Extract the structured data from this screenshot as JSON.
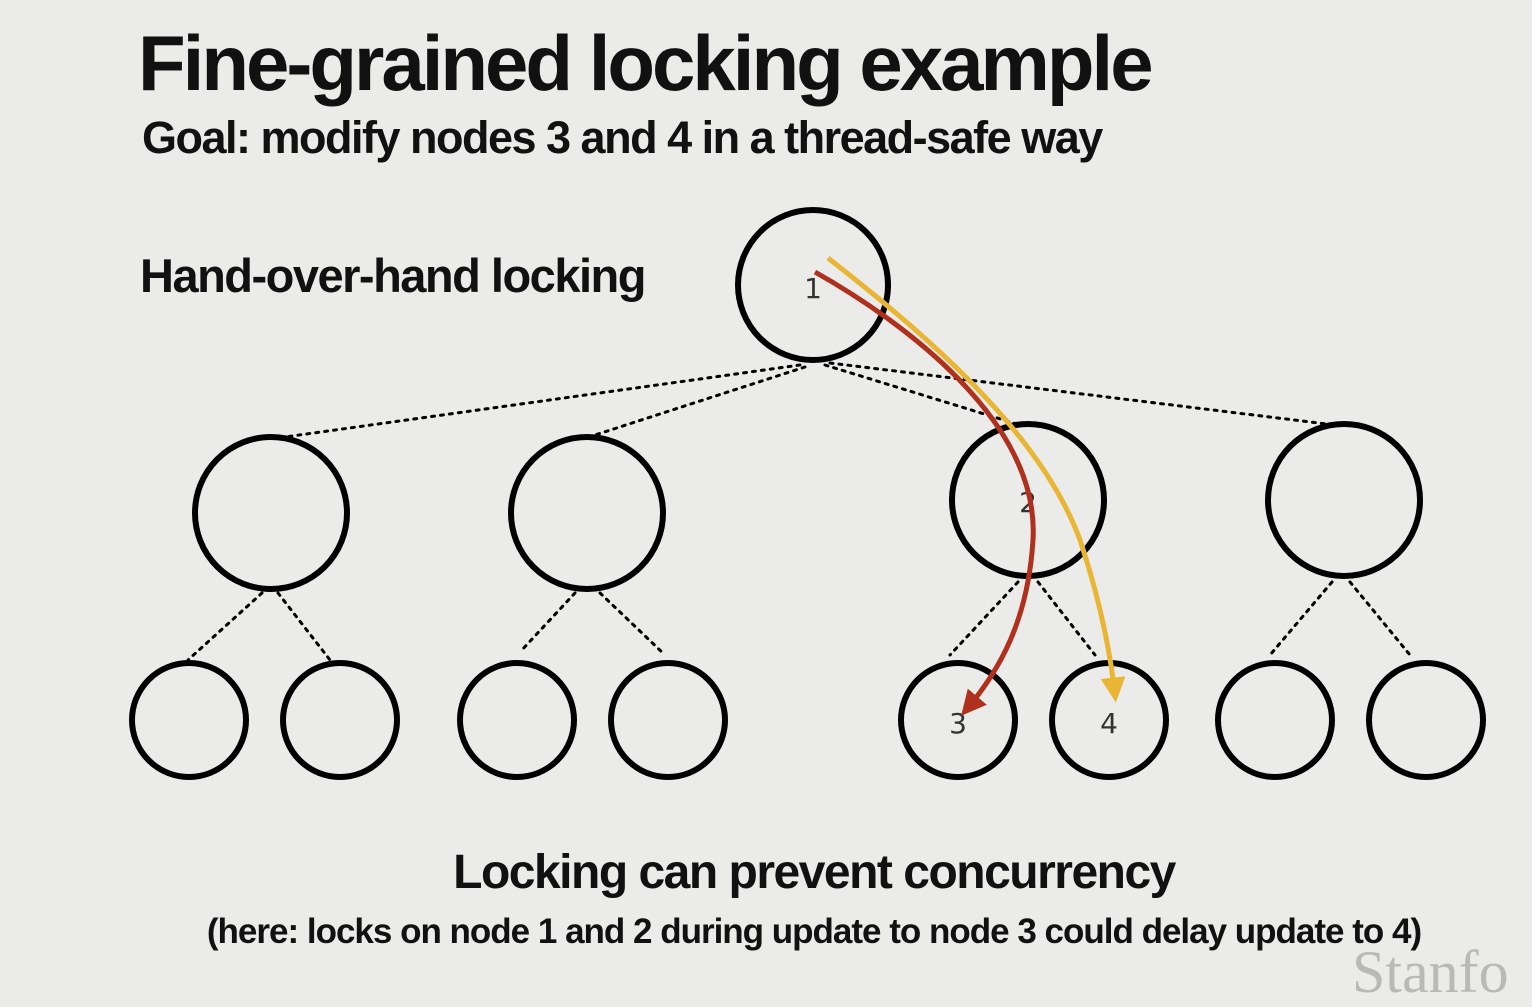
{
  "title": "Fine-grained locking example",
  "subtitle": "Goal: modify nodes 3 and 4 in a thread-safe way",
  "side_label": "Hand-over-hand locking",
  "caption": {
    "main": "Locking can prevent concurrency",
    "sub": "(here: locks on node 1 and 2 during update to node 3 could delay update to 4)"
  },
  "nodes": {
    "root": "1",
    "mid_right": "2",
    "leaf_3": "3",
    "leaf_4": "4"
  },
  "arrows": {
    "to_node_3_color": "#b0301e",
    "to_node_4_color": "#e8b634"
  },
  "watermark": "Stanfo"
}
